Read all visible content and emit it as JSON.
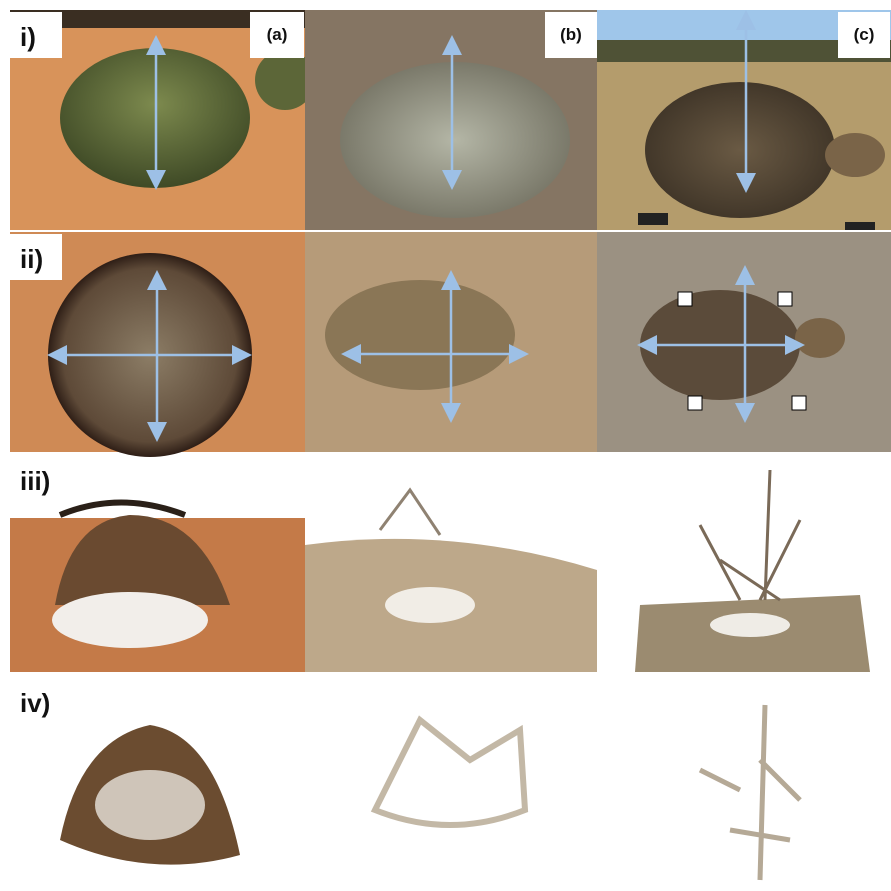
{
  "row_labels": [
    "i)",
    "ii)",
    "iii)",
    "iv)"
  ],
  "column_labels": [
    "(a)",
    "(b)",
    "(c)"
  ]
}
